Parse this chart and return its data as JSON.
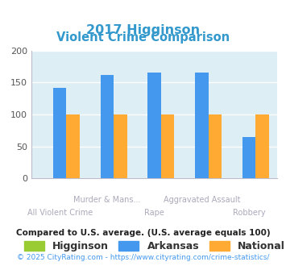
{
  "title_line1": "2017 Higginson",
  "title_line2": "Violent Crime Comparison",
  "title_color": "#3399cc",
  "groups": [
    "All Violent Crime",
    "Murder & Mans...",
    "Rape",
    "Aggravated Assault",
    "Robbery"
  ],
  "bottom_labels": [
    "All Violent Crime",
    "",
    "Rape",
    "",
    "Robbery"
  ],
  "top_labels": [
    "",
    "Murder & Mans...",
    "",
    "Aggravated Assault",
    ""
  ],
  "higginson": [
    0,
    0,
    0,
    0,
    0
  ],
  "arkansas": [
    141,
    162,
    165,
    166,
    65
  ],
  "national": [
    100,
    100,
    100,
    100,
    100
  ],
  "higginson_color": "#99cc33",
  "arkansas_color": "#4499ee",
  "national_color": "#ffaa33",
  "ylim": [
    0,
    200
  ],
  "yticks": [
    0,
    50,
    100,
    150,
    200
  ],
  "bar_width": 0.28,
  "bg_color": "#ddeef5",
  "legend_labels": [
    "Higginson",
    "Arkansas",
    "National"
  ],
  "footnote1": "Compared to U.S. average. (U.S. average equals 100)",
  "footnote2": "© 2025 CityRating.com - https://www.cityrating.com/crime-statistics/",
  "footnote1_color": "#222222",
  "footnote2_color": "#4499ee",
  "xlabel_color": "#aaaabb",
  "grid_color": "#ffffff",
  "spine_color": "#bbbbcc"
}
